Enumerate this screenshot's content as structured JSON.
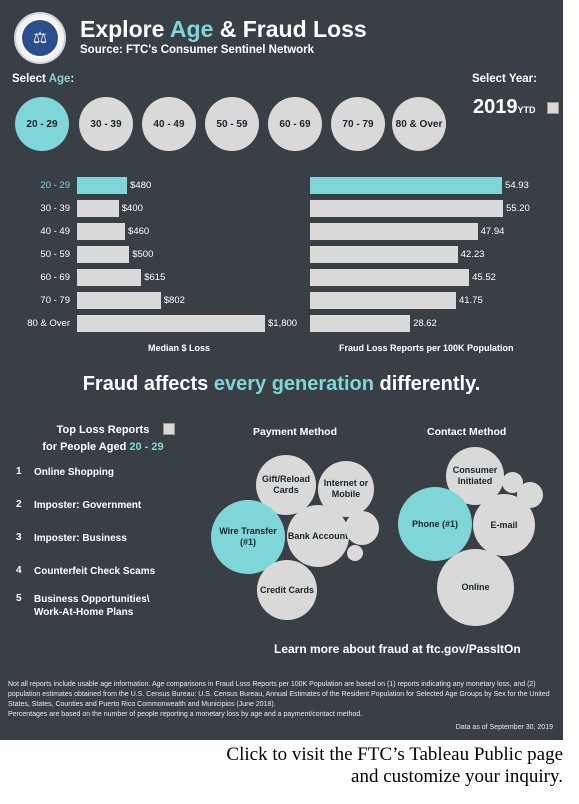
{
  "header": {
    "title_pre": "Explore ",
    "title_hl": "Age",
    "title_post": " & Fraud Loss",
    "source": "Source: FTC's Consumer Sentinel Network"
  },
  "controls": {
    "select_pre": "Select ",
    "select_hl": "Age",
    "select_post": ":",
    "select_year": "Select Year:",
    "year": "2019",
    "ytd": "YTD"
  },
  "age_buttons": [
    "20 - 29",
    "30 - 39",
    "40 - 49",
    "50 - 59",
    "60 - 69",
    "70 - 79",
    "80 & Over"
  ],
  "chart_data": [
    {
      "type": "bar",
      "orientation": "horizontal",
      "categories": [
        "20 - 29",
        "30 - 39",
        "40 - 49",
        "50 - 59",
        "60 - 69",
        "70 - 79",
        "80 & Over"
      ],
      "values": [
        480,
        400,
        460,
        500,
        615,
        802,
        1800
      ],
      "labels": [
        "$480",
        "$400",
        "$460",
        "$500",
        "$615",
        "$802",
        "$1,800"
      ],
      "xlabel": "Median $ Loss",
      "highlight": "20 - 29"
    },
    {
      "type": "bar",
      "orientation": "horizontal",
      "categories": [
        "20 - 29",
        "30 - 39",
        "40 - 49",
        "50 - 59",
        "60 - 69",
        "70 - 79",
        "80 & Over"
      ],
      "values": [
        54.93,
        55.2,
        47.94,
        42.23,
        45.52,
        41.75,
        28.62
      ],
      "labels": [
        "54.93",
        "55.20",
        "47.94",
        "42.23",
        "45.52",
        "41.75",
        "28.62"
      ],
      "xlabel": "Fraud Loss Reports per 100K Population",
      "highlight": "20 - 29"
    }
  ],
  "headline": {
    "pre": "Fraud affects ",
    "hl": "every generation",
    "post": " differently."
  },
  "top_loss": {
    "title_line1": "Top Loss Reports",
    "title_line2_pre": "for People Aged ",
    "title_line2_hl": "20 - 29",
    "items": [
      {
        "n": "1",
        "text": "Online Shopping"
      },
      {
        "n": "2",
        "text": "Imposter: Government"
      },
      {
        "n": "3",
        "text": "Imposter: Business"
      },
      {
        "n": "4",
        "text": "Counterfeit Check Scams"
      },
      {
        "n": "5",
        "text": "Business Opportunities\\ Work-At-Home Plans"
      }
    ]
  },
  "payment": {
    "title": "Payment Method",
    "bubbles": [
      "Gift/Reload Cards",
      "Internet or Mobile",
      "Wire Transfer (#1)",
      "Bank Account",
      "Credit Cards"
    ]
  },
  "contact": {
    "title": "Contact Method",
    "bubbles": [
      "Consumer Initiated",
      "Phone (#1)",
      "E-mail",
      "Online"
    ]
  },
  "footer": {
    "learn": "Learn more about fraud at ftc.gov/PassItOn",
    "note1": "Not all reports include usable age information. Age comparisons in Fraud Loss Reports per 100K Population are based on (1) reports indicating any monetary loss, and (2) population estimates obtained from the U.S. Census Bureau: U.S. Census Bureau, Annual Estimates of the Resident Population for Selected Age Groups by Sex for the United States, States, Counties and Puerto Rico Commonwealth and Municipios (June 2018).",
    "note2": "Percentages are based on the number of people reporting a monetary loss by age and a payment/contact method.",
    "as_of": "Data as of September 30, 2019"
  },
  "caption": {
    "line1": "Click to visit the FTC’s Tableau Public page",
    "line2": "and customize your inquiry."
  }
}
